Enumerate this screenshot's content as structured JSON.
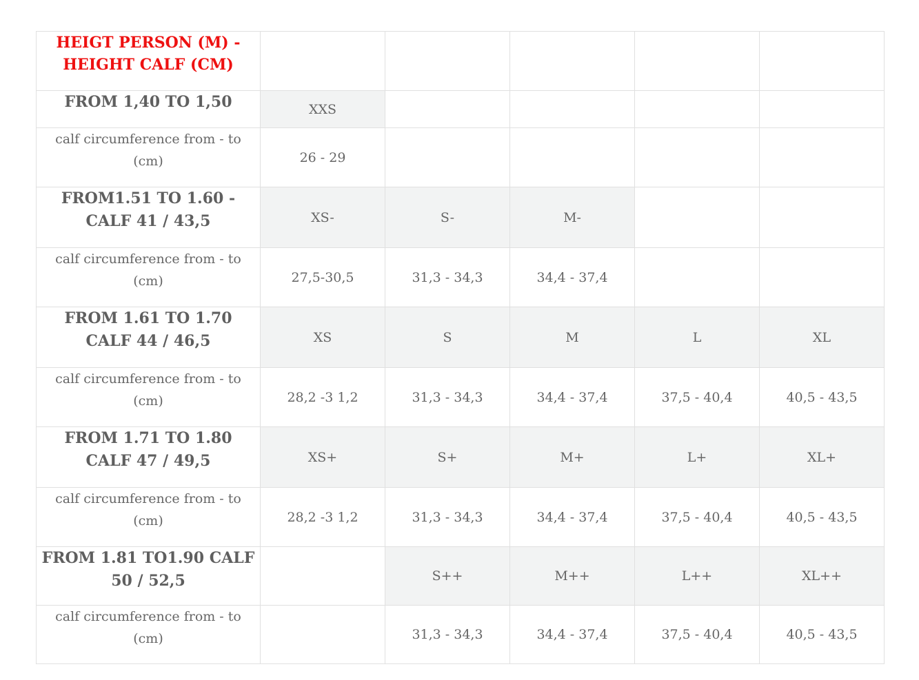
{
  "header": {
    "title": "HEIGT PERSON (M) - HEIGHT CALF (CM)"
  },
  "groups": [
    {
      "label": "FROM 1,40 TO 1,50",
      "sizes": [
        "XXS",
        "",
        "",
        "",
        ""
      ],
      "measure_label": "calf circumference from - to (cm)",
      "measures": [
        "26 - 29",
        "",
        "",
        "",
        ""
      ]
    },
    {
      "label": "FROM1.51 TO 1.60 - CALF 41 / 43,5",
      "sizes": [
        "XS-",
        "S-",
        "M-",
        "",
        ""
      ],
      "measure_label": "calf circumference from - to (cm)",
      "measures": [
        "27,5-30,5",
        "31,3 - 34,3",
        "34,4 - 37,4",
        "",
        ""
      ]
    },
    {
      "label": "FROM 1.61 TO 1.70 CALF 44 / 46,5",
      "sizes": [
        "XS",
        "S",
        "M",
        "L",
        "XL"
      ],
      "measure_label": "calf circumference from - to (cm)",
      "measures": [
        "28,2 -3 1,2",
        "31,3 - 34,3",
        "34,4 - 37,4",
        "37,5 - 40,4",
        "40,5 - 43,5"
      ]
    },
    {
      "label": "FROM 1.71 TO 1.80 CALF 47 / 49,5",
      "sizes": [
        "XS+",
        "S+",
        "M+",
        "L+",
        "XL+"
      ],
      "measure_label": "calf circumference from - to (cm)",
      "measures": [
        "28,2 -3 1,2",
        "31,3 - 34,3",
        "34,4 - 37,4",
        "37,5 - 40,4",
        "40,5 - 43,5"
      ]
    },
    {
      "label": "FROM 1.81 TO1.90 CALF 50 / 52,5",
      "sizes": [
        "",
        "S++",
        "M++",
        "L++",
        "XL++"
      ],
      "measure_label": "calf circumference from - to (cm)",
      "measures": [
        "",
        "31,3 - 34,3",
        "34,4 - 37,4",
        "37,5 - 40,4",
        "40,5 - 43,5"
      ]
    }
  ]
}
